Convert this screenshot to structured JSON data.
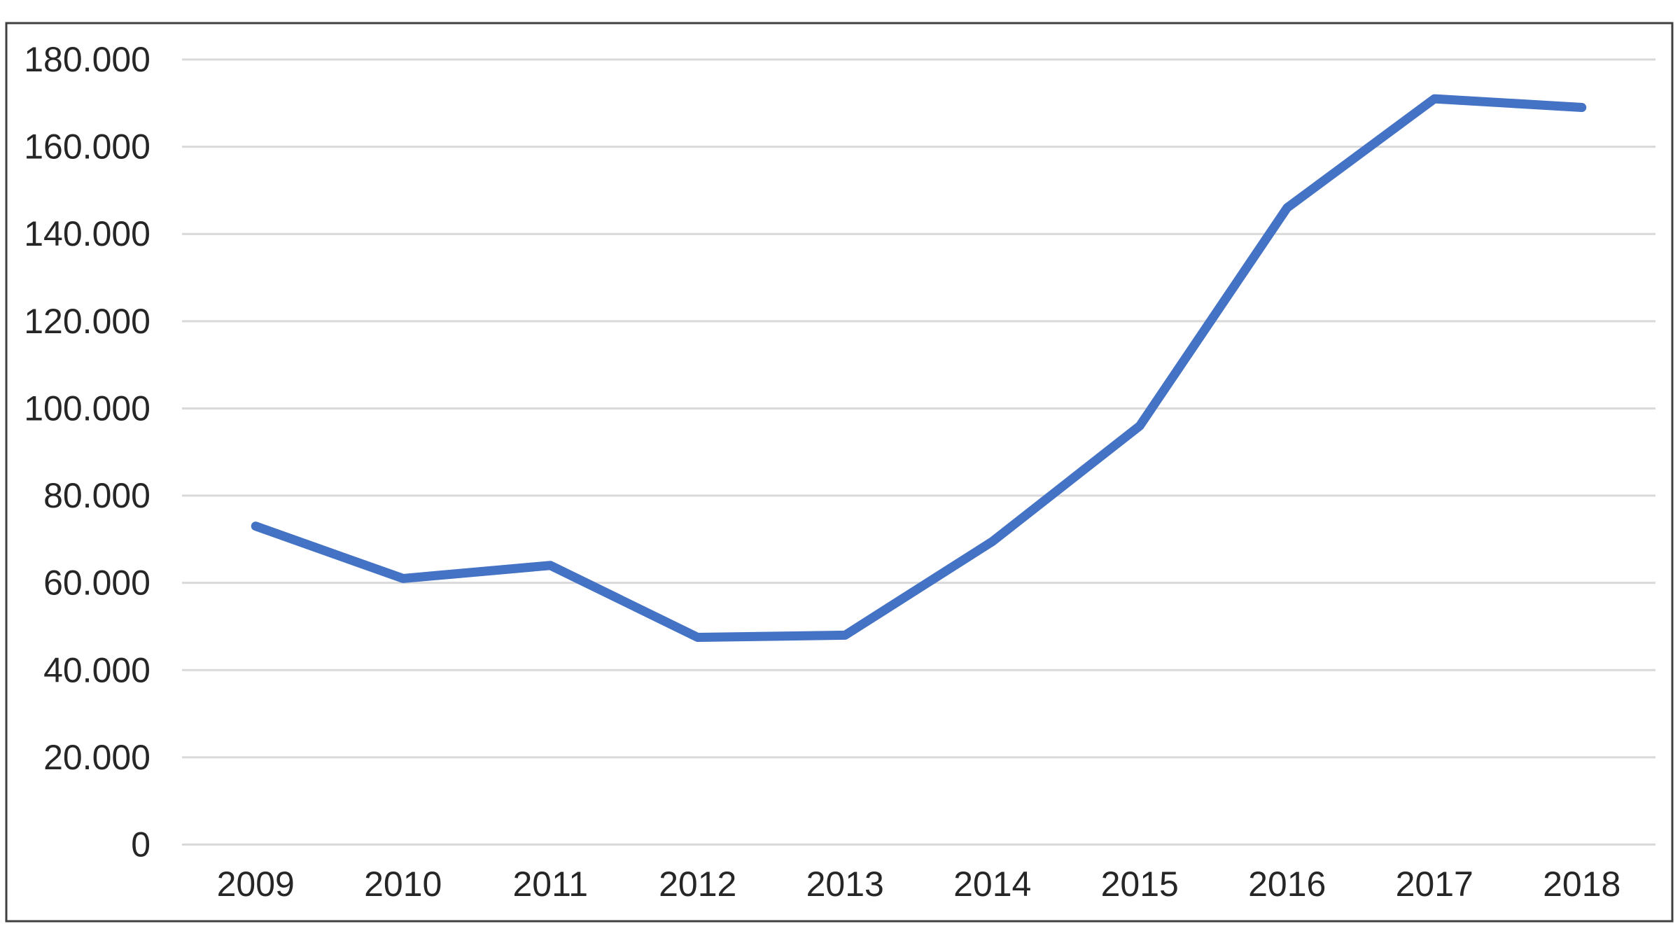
{
  "chart_data": {
    "type": "line",
    "title": "",
    "categories": [
      "2009",
      "2010",
      "2011",
      "2012",
      "2013",
      "2014",
      "2015",
      "2016",
      "2017",
      "2018"
    ],
    "values": [
      73000,
      61000,
      64000,
      47500,
      48000,
      69500,
      96000,
      146000,
      171000,
      169000
    ],
    "xlabel": "",
    "ylabel": "",
    "ylim": [
      0,
      180000
    ],
    "y_tick_interval": 20000,
    "y_tick_labels": [
      "0",
      "20.000",
      "40.000",
      "60.000",
      "80.000",
      "100.000",
      "120.000",
      "140.000",
      "160.000",
      "180.000"
    ],
    "grid": true,
    "legend": false,
    "colors": {
      "line": "#4472C4",
      "gridline": "#D9D9D9",
      "border": "#404040",
      "text": "#262626",
      "background": "#FFFFFF"
    }
  }
}
